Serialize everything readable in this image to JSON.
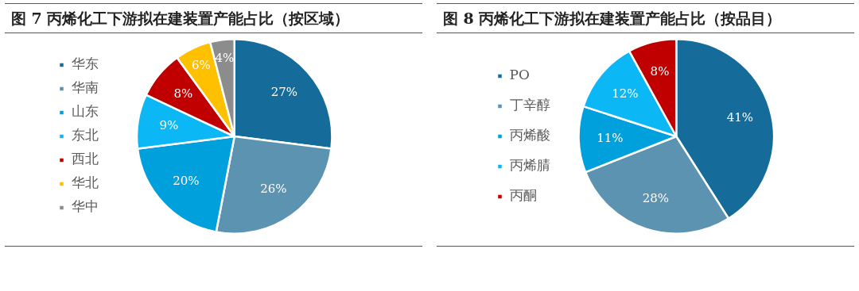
{
  "chart_data": [
    {
      "type": "pie",
      "title": "图 7 丙烯化工下游拟在建装置产能占比（按区域）",
      "categories": [
        "华东",
        "华南",
        "山东",
        "东北",
        "西北",
        "华北",
        "华中"
      ],
      "values": [
        27,
        26,
        20,
        9,
        8,
        6,
        4
      ],
      "colors": [
        "#156b9a",
        "#5b93b0",
        "#00a0dc",
        "#0bb8f5",
        "#c00000",
        "#ffc000",
        "#8c8c8c"
      ],
      "value_labels": [
        "27%",
        "26%",
        "20%",
        "9%",
        "8%",
        "6%",
        "4%"
      ],
      "legend": "left"
    },
    {
      "type": "pie",
      "title": "图 8 丙烯化工下游拟在建装置产能占比（按品目）",
      "categories": [
        "PO",
        "丁辛醇",
        "丙烯酸",
        "丙烯腈",
        "丙酮"
      ],
      "values": [
        41,
        28,
        11,
        12,
        8
      ],
      "colors": [
        "#156b9a",
        "#5b93b0",
        "#00a0dc",
        "#0bb8f5",
        "#c00000"
      ],
      "value_labels": [
        "41%",
        "28%",
        "11%",
        "12%",
        "8%"
      ],
      "legend": "left"
    }
  ]
}
